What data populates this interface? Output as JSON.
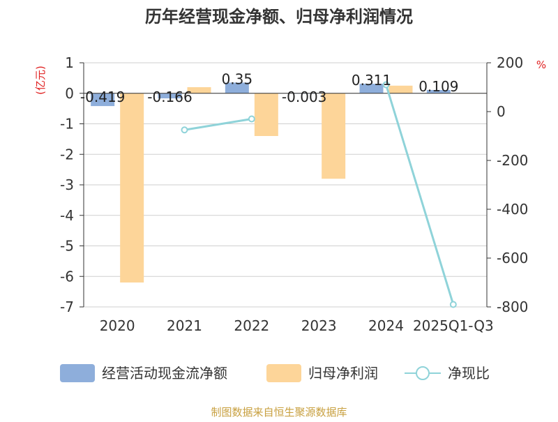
{
  "chart_data": {
    "type": "bar",
    "title": "历年经营现金净额、归母净利润情况",
    "categories": [
      "2020",
      "2021",
      "2022",
      "2023",
      "2024",
      "2025Q1-Q3"
    ],
    "y_left": {
      "label": "(亿元)",
      "range": [
        -7,
        1
      ],
      "ticks": [
        "1",
        "0",
        "-1",
        "-2",
        "-3",
        "-4",
        "-5",
        "-6",
        "-7"
      ]
    },
    "y_right": {
      "label": "%",
      "range": [
        -800,
        200
      ],
      "ticks": [
        "200",
        "0",
        "-200",
        "-400",
        "-600",
        "-800"
      ]
    },
    "series": [
      {
        "name": "经营活动现金流净额",
        "type": "bar",
        "axis": "left",
        "color": "#8eaedb",
        "values": [
          -0.419,
          -0.166,
          0.35,
          -0.003,
          0.311,
          0.109
        ],
        "labels": [
          "-0.419",
          "-0.166",
          "0.35",
          "-0.003",
          "0.311",
          "0.109"
        ]
      },
      {
        "name": "归母净利润",
        "type": "bar",
        "axis": "left",
        "color": "#fdd599",
        "values": [
          -6.2,
          0.2,
          -1.4,
          -2.8,
          0.25,
          0.0
        ]
      },
      {
        "name": "净现比",
        "type": "line",
        "axis": "right",
        "color": "#8fd3d9",
        "values": [
          null,
          -75,
          -30,
          null,
          110,
          -790
        ]
      }
    ],
    "grid": true,
    "legend": "bottom"
  },
  "footer": {
    "source": "制图数据来自恒生聚源数据库"
  }
}
